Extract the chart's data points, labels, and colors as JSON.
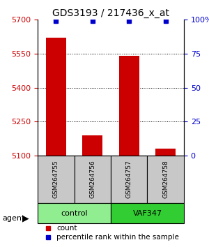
{
  "title": "GDS3193 / 217436_x_at",
  "samples": [
    "GSM264755",
    "GSM264756",
    "GSM264757",
    "GSM264758"
  ],
  "counts": [
    5620,
    5190,
    5540,
    5130
  ],
  "percentile_ranks": [
    99,
    99,
    99,
    99
  ],
  "groups": [
    "control",
    "control",
    "VAF347",
    "VAF347"
  ],
  "ylim_left": [
    5100,
    5700
  ],
  "ylim_right": [
    0,
    100
  ],
  "yticks_left": [
    5100,
    5250,
    5400,
    5550,
    5700
  ],
  "yticks_right": [
    0,
    25,
    50,
    75,
    100
  ],
  "bar_color": "#cc0000",
  "dot_color": "#0000cc",
  "grid_color": "#000000",
  "left_tick_color": "#cc0000",
  "right_tick_color": "#0000cc",
  "control_color": "#90EE90",
  "vaf_color": "#32CD32",
  "sample_box_color": "#c8c8c8",
  "legend_count_color": "#cc0000",
  "legend_pct_color": "#0000cc"
}
